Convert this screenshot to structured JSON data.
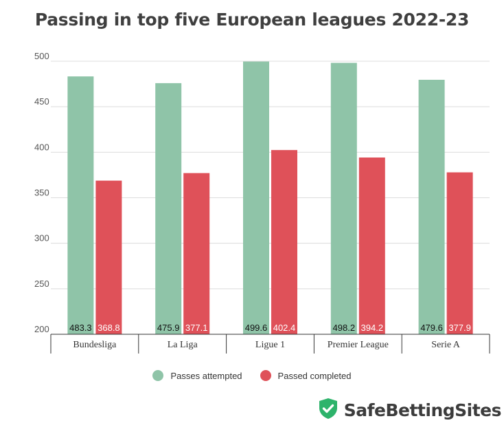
{
  "title": "Passing in top five European leagues 2022-23",
  "chart_data": {
    "type": "bar",
    "categories": [
      "Bundesliga",
      "La Liga",
      "Ligue 1",
      "Premier League",
      "Serie A"
    ],
    "series": [
      {
        "name": "Passes attempted",
        "values": [
          483.3,
          475.9,
          499.6,
          498.2,
          479.6
        ],
        "color": "#8fc4a8"
      },
      {
        "name": "Passed completed",
        "values": [
          368.8,
          377.1,
          402.4,
          394.2,
          377.9
        ],
        "color": "#df5159"
      }
    ],
    "yticks": [
      200,
      250,
      300,
      350,
      400,
      450,
      500
    ],
    "ylim": [
      200,
      500
    ],
    "grid": true,
    "legend_position": "bottom"
  },
  "legend": {
    "items": [
      {
        "label": "Passes attempted",
        "color": "#8fc4a8"
      },
      {
        "label": "Passed completed",
        "color": "#df5159"
      }
    ]
  },
  "brand": {
    "name": "SafeBettingSites",
    "logo_icon": "shield-check-icon",
    "logo_color": "#2db36b"
  }
}
